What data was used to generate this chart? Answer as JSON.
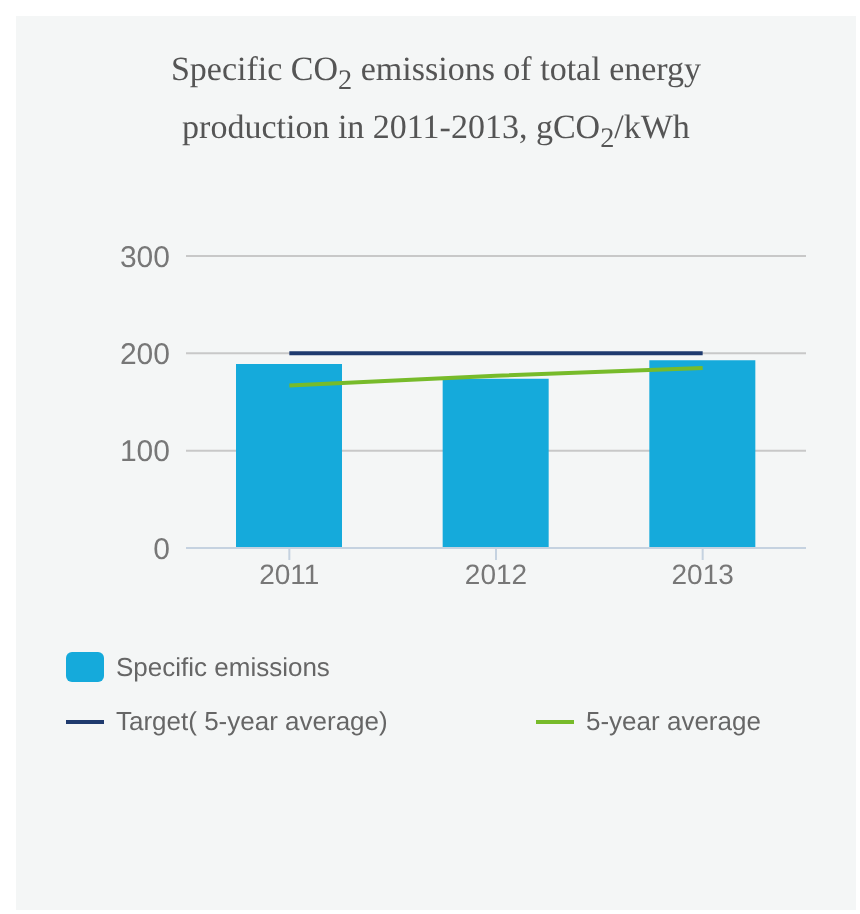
{
  "chart_data": {
    "type": "bar",
    "title": "Specific CO$_{2}$ emissions of total energy production in 2011-2013, gCO$_{2}$/kWh",
    "categories": [
      "2011",
      "2012",
      "2013"
    ],
    "series": [
      {
        "name": "Specific emissions",
        "color": "#15aadb",
        "values": [
          189,
          174,
          193
        ]
      },
      {
        "name": "Target( 5-year average)",
        "type": "line",
        "color": "#1f3a6e",
        "values": [
          200,
          200,
          200
        ]
      },
      {
        "name": "5-year average",
        "type": "line",
        "color": "#77bb2a",
        "values": [
          167,
          177,
          185
        ]
      }
    ],
    "ylim": [
      0,
      300
    ],
    "yticks": [
      0,
      100,
      200,
      300
    ],
    "grid": "y",
    "legend": "bottom",
    "marker": "none"
  }
}
